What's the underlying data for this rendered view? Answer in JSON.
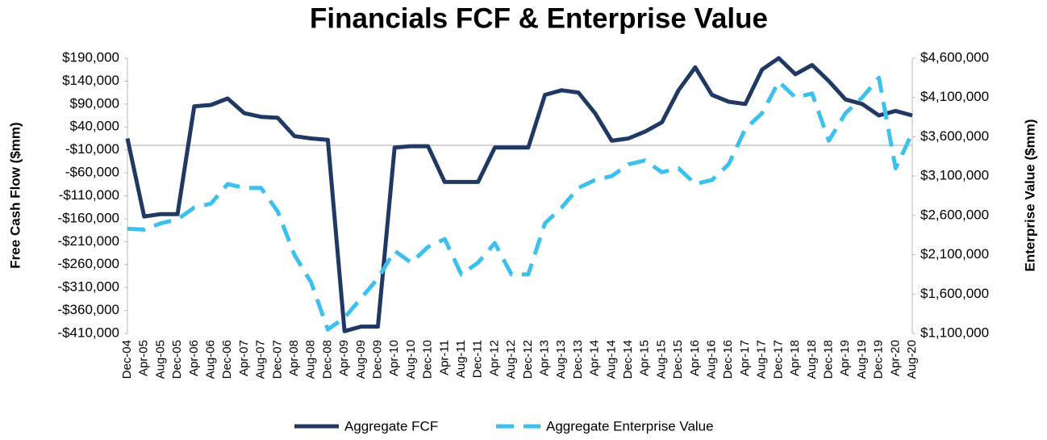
{
  "chart_data": {
    "type": "line",
    "title": "Financials FCF & Enterprise Value",
    "y_label": "Free Cash Flow ($mm)",
    "y2_label": "Enterprise Value ($mm)",
    "categories": [
      "Dec-04",
      "Apr-05",
      "Aug-05",
      "Dec-05",
      "Apr-06",
      "Aug-06",
      "Dec-06",
      "Apr-07",
      "Aug-07",
      "Dec-07",
      "Apr-08",
      "Aug-08",
      "Dec-08",
      "Apr-09",
      "Aug-09",
      "Dec-09",
      "Apr-10",
      "Aug-10",
      "Dec-10",
      "Apr-11",
      "Aug-11",
      "Dec-11",
      "Apr-12",
      "Aug-12",
      "Dec-12",
      "Apr-13",
      "Aug-13",
      "Dec-13",
      "Apr-14",
      "Aug-14",
      "Dec-14",
      "Apr-15",
      "Aug-15",
      "Dec-15",
      "Apr-16",
      "Aug-16",
      "Dec-16",
      "Apr-17",
      "Aug-17",
      "Dec-17",
      "Apr-18",
      "Aug-18",
      "Dec-18",
      "Apr-19",
      "Aug-19",
      "Dec-19",
      "Apr-20",
      "Aug-20"
    ],
    "series": [
      {
        "name": "Aggregate FCF",
        "color": "#1f3864",
        "axis": "y",
        "dash": false,
        "values": [
          15000,
          -155000,
          -150000,
          -150000,
          85000,
          88000,
          102000,
          70000,
          62000,
          60000,
          20000,
          15000,
          12000,
          -405000,
          -395000,
          -395000,
          -5000,
          -2000,
          -2000,
          -80000,
          -80000,
          -80000,
          -5000,
          -5000,
          -5000,
          110000,
          120000,
          115000,
          70000,
          10000,
          15000,
          30000,
          50000,
          120000,
          170000,
          110000,
          95000,
          90000,
          165000,
          190000,
          155000,
          175000,
          140000,
          100000,
          90000,
          65000,
          75000,
          65000
        ]
      },
      {
        "name": "Aggregate Enterprise Value",
        "color": "#3cc0ee",
        "axis": "y2",
        "dash": true,
        "values": [
          2430000,
          2420000,
          2500000,
          2550000,
          2700000,
          2750000,
          3000000,
          2950000,
          2950000,
          2650000,
          2100000,
          1750000,
          1150000,
          1300000,
          1550000,
          1800000,
          2150000,
          2000000,
          2200000,
          2300000,
          1850000,
          2000000,
          2250000,
          1850000,
          1850000,
          2500000,
          2700000,
          2950000,
          3050000,
          3100000,
          3250000,
          3300000,
          3150000,
          3200000,
          3000000,
          3050000,
          3250000,
          3700000,
          3900000,
          4300000,
          4100000,
          4150000,
          3550000,
          3900000,
          4100000,
          4350000,
          3200000,
          3650000
        ]
      }
    ],
    "ylim": [
      -410000,
      190000
    ],
    "yticks": [
      {
        "value": -410000,
        "label": "-$410,000"
      },
      {
        "value": -360000,
        "label": "-$360,000"
      },
      {
        "value": -310000,
        "label": "-$310,000"
      },
      {
        "value": -260000,
        "label": "-$260,000"
      },
      {
        "value": -210000,
        "label": "-$210,000"
      },
      {
        "value": -160000,
        "label": "-$160,000"
      },
      {
        "value": -110000,
        "label": "-$110,000"
      },
      {
        "value": -60000,
        "label": "-$60,000"
      },
      {
        "value": -10000,
        "label": "-$10,000"
      },
      {
        "value": 40000,
        "label": "$40,000"
      },
      {
        "value": 90000,
        "label": "$90,000"
      },
      {
        "value": 140000,
        "label": "$140,000"
      },
      {
        "value": 190000,
        "label": "$190,000"
      }
    ],
    "y2lim": [
      1100000,
      4600000
    ],
    "y2ticks": [
      {
        "value": 1100000,
        "label": "$1,100,000"
      },
      {
        "value": 1600000,
        "label": "$1,600,000"
      },
      {
        "value": 2100000,
        "label": "$2,100,000"
      },
      {
        "value": 2600000,
        "label": "$2,600,000"
      },
      {
        "value": 3100000,
        "label": "$3,100,000"
      },
      {
        "value": 3600000,
        "label": "$3,600,000"
      },
      {
        "value": 4100000,
        "label": "$4,100,000"
      },
      {
        "value": 4600000,
        "label": "$4,600,000"
      }
    ],
    "legend": "bottom"
  }
}
